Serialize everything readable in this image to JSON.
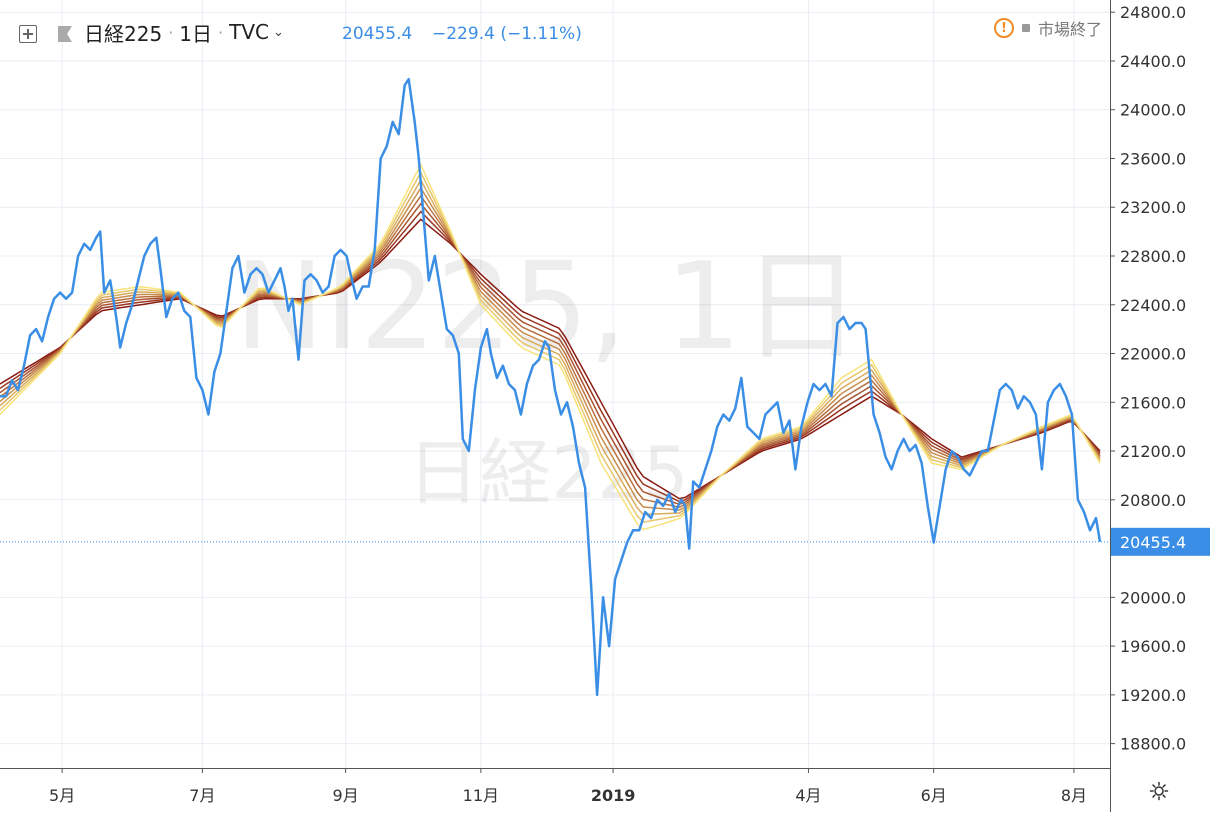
{
  "header": {
    "symbol": "日経225",
    "interval": "1日",
    "source": "TVC",
    "source_menu_icon": "chevron-down-icon",
    "add_icon": "plus-square-icon",
    "flag_icon": "flag-icon",
    "last_price": "20455.4",
    "change": "−229.4",
    "change_percent": "(−1.11%)",
    "market_status": "市場終了",
    "warning_icon": "exclamation-circle-icon",
    "settings_icon": "gear-icon"
  },
  "watermark": {
    "line1": "NI225, 1日",
    "line2": "日経225"
  },
  "colors": {
    "price_line": "#3a8ee6",
    "ribbon_fast": "#f7e37a",
    "ribbon_slow": "#8a1a12",
    "axis_text": "#333333",
    "grid": "#e9eef3",
    "price_tag": "#3a8ee6"
  },
  "chart_data": {
    "type": "line",
    "title": "日経225",
    "series": [
      {
        "name": "日経225",
        "points": [
          [
            0,
            21650
          ],
          [
            6,
            21650
          ],
          [
            12,
            21780
          ],
          [
            18,
            21700
          ],
          [
            24,
            21900
          ],
          [
            30,
            22150
          ],
          [
            36,
            22200
          ],
          [
            42,
            22100
          ],
          [
            48,
            22300
          ],
          [
            54,
            22450
          ],
          [
            60,
            22500
          ],
          [
            66,
            22450
          ],
          [
            72,
            22500
          ],
          [
            78,
            22800
          ],
          [
            84,
            22900
          ],
          [
            90,
            22850
          ],
          [
            96,
            22950
          ],
          [
            100,
            23000
          ],
          [
            104,
            22500
          ],
          [
            110,
            22600
          ],
          [
            116,
            22300
          ],
          [
            120,
            22050
          ],
          [
            126,
            22250
          ],
          [
            132,
            22400
          ],
          [
            138,
            22600
          ],
          [
            144,
            22800
          ],
          [
            150,
            22900
          ],
          [
            156,
            22950
          ],
          [
            160,
            22700
          ],
          [
            166,
            22300
          ],
          [
            172,
            22450
          ],
          [
            178,
            22500
          ],
          [
            184,
            22350
          ],
          [
            190,
            22300
          ],
          [
            196,
            21800
          ],
          [
            202,
            21700
          ],
          [
            208,
            21500
          ],
          [
            214,
            21850
          ],
          [
            220,
            22000
          ],
          [
            226,
            22350
          ],
          [
            232,
            22700
          ],
          [
            238,
            22800
          ],
          [
            244,
            22500
          ],
          [
            250,
            22650
          ],
          [
            256,
            22700
          ],
          [
            262,
            22650
          ],
          [
            268,
            22500
          ],
          [
            274,
            22600
          ],
          [
            280,
            22700
          ],
          [
            284,
            22550
          ],
          [
            288,
            22350
          ],
          [
            292,
            22450
          ],
          [
            298,
            21950
          ],
          [
            304,
            22600
          ],
          [
            310,
            22650
          ],
          [
            316,
            22600
          ],
          [
            322,
            22500
          ],
          [
            328,
            22550
          ],
          [
            334,
            22800
          ],
          [
            340,
            22850
          ],
          [
            346,
            22800
          ],
          [
            350,
            22650
          ],
          [
            356,
            22450
          ],
          [
            362,
            22550
          ],
          [
            368,
            22550
          ],
          [
            374,
            22850
          ],
          [
            380,
            23600
          ],
          [
            386,
            23700
          ],
          [
            392,
            23900
          ],
          [
            398,
            23800
          ],
          [
            404,
            24200
          ],
          [
            408,
            24250
          ],
          [
            414,
            23900
          ],
          [
            418,
            23600
          ],
          [
            422,
            23200
          ],
          [
            428,
            22600
          ],
          [
            434,
            22800
          ],
          [
            440,
            22500
          ],
          [
            446,
            22200
          ],
          [
            452,
            22150
          ],
          [
            458,
            22000
          ],
          [
            462,
            21300
          ],
          [
            468,
            21200
          ],
          [
            474,
            21700
          ],
          [
            480,
            22050
          ],
          [
            486,
            22200
          ],
          [
            490,
            22000
          ],
          [
            496,
            21800
          ],
          [
            502,
            21900
          ],
          [
            508,
            21750
          ],
          [
            514,
            21700
          ],
          [
            520,
            21500
          ],
          [
            526,
            21750
          ],
          [
            532,
            21900
          ],
          [
            538,
            21950
          ],
          [
            544,
            22100
          ],
          [
            548,
            22050
          ],
          [
            554,
            21700
          ],
          [
            560,
            21500
          ],
          [
            566,
            21600
          ],
          [
            572,
            21400
          ],
          [
            578,
            21100
          ],
          [
            584,
            20900
          ],
          [
            590,
            20100
          ],
          [
            596,
            19200
          ],
          [
            602,
            20000
          ],
          [
            608,
            19600
          ],
          [
            614,
            20150
          ],
          [
            620,
            20300
          ],
          [
            626,
            20450
          ],
          [
            632,
            20550
          ],
          [
            638,
            20550
          ],
          [
            644,
            20700
          ],
          [
            650,
            20650
          ],
          [
            656,
            20800
          ],
          [
            662,
            20750
          ],
          [
            668,
            20850
          ],
          [
            674,
            20700
          ],
          [
            680,
            20800
          ],
          [
            684,
            20750
          ],
          [
            688,
            20400
          ],
          [
            692,
            20950
          ],
          [
            698,
            20900
          ],
          [
            704,
            21050
          ],
          [
            710,
            21200
          ],
          [
            716,
            21400
          ],
          [
            722,
            21500
          ],
          [
            728,
            21450
          ],
          [
            734,
            21550
          ],
          [
            740,
            21800
          ],
          [
            746,
            21400
          ],
          [
            752,
            21350
          ],
          [
            758,
            21300
          ],
          [
            764,
            21500
          ],
          [
            770,
            21550
          ],
          [
            776,
            21600
          ],
          [
            782,
            21350
          ],
          [
            788,
            21450
          ],
          [
            794,
            21050
          ],
          [
            800,
            21400
          ],
          [
            806,
            21600
          ],
          [
            812,
            21750
          ],
          [
            818,
            21700
          ],
          [
            824,
            21750
          ],
          [
            830,
            21650
          ],
          [
            836,
            22250
          ],
          [
            842,
            22300
          ],
          [
            848,
            22200
          ],
          [
            854,
            22250
          ],
          [
            860,
            22250
          ],
          [
            864,
            22200
          ],
          [
            868,
            21850
          ],
          [
            872,
            21500
          ],
          [
            878,
            21350
          ],
          [
            884,
            21150
          ],
          [
            890,
            21050
          ],
          [
            896,
            21200
          ],
          [
            902,
            21300
          ],
          [
            908,
            21200
          ],
          [
            914,
            21250
          ],
          [
            920,
            21100
          ],
          [
            926,
            20750
          ],
          [
            932,
            20450
          ],
          [
            938,
            20750
          ],
          [
            944,
            21050
          ],
          [
            950,
            21200
          ],
          [
            956,
            21150
          ],
          [
            962,
            21050
          ],
          [
            968,
            21000
          ],
          [
            974,
            21100
          ],
          [
            980,
            21200
          ],
          [
            986,
            21200
          ],
          [
            992,
            21450
          ],
          [
            998,
            21700
          ],
          [
            1004,
            21750
          ],
          [
            1010,
            21700
          ],
          [
            1016,
            21550
          ],
          [
            1022,
            21650
          ],
          [
            1028,
            21600
          ],
          [
            1034,
            21500
          ],
          [
            1040,
            21050
          ],
          [
            1046,
            21600
          ],
          [
            1052,
            21700
          ],
          [
            1058,
            21750
          ],
          [
            1064,
            21650
          ],
          [
            1070,
            21500
          ],
          [
            1076,
            20800
          ],
          [
            1082,
            20700
          ],
          [
            1088,
            20550
          ],
          [
            1094,
            20650
          ],
          [
            1098,
            20455.4
          ]
        ]
      }
    ],
    "ribbon": {
      "type": "ema-ribbon",
      "count": 8,
      "base": [
        [
          0,
          21750
        ],
        [
          60,
          22050
        ],
        [
          100,
          22350
        ],
        [
          140,
          22400
        ],
        [
          180,
          22450
        ],
        [
          220,
          22300
        ],
        [
          260,
          22450
        ],
        [
          300,
          22450
        ],
        [
          340,
          22500
        ],
        [
          380,
          22750
        ],
        [
          420,
          23100
        ],
        [
          450,
          22900
        ],
        [
          480,
          22650
        ],
        [
          520,
          22350
        ],
        [
          560,
          22200
        ],
        [
          600,
          21600
        ],
        [
          640,
          21000
        ],
        [
          680,
          20800
        ],
        [
          720,
          21000
        ],
        [
          760,
          21200
        ],
        [
          800,
          21300
        ],
        [
          840,
          21500
        ],
        [
          870,
          21650
        ],
        [
          900,
          21500
        ],
        [
          930,
          21300
        ],
        [
          960,
          21150
        ],
        [
          1000,
          21250
        ],
        [
          1040,
          21350
        ],
        [
          1070,
          21450
        ],
        [
          1098,
          21200
        ]
      ],
      "fast": [
        [
          0,
          21500
        ],
        [
          60,
          22000
        ],
        [
          100,
          22500
        ],
        [
          140,
          22550
        ],
        [
          180,
          22500
        ],
        [
          220,
          22200
        ],
        [
          260,
          22550
        ],
        [
          300,
          22400
        ],
        [
          340,
          22550
        ],
        [
          380,
          22900
        ],
        [
          420,
          23550
        ],
        [
          450,
          23000
        ],
        [
          480,
          22400
        ],
        [
          520,
          22050
        ],
        [
          560,
          21900
        ],
        [
          600,
          21100
        ],
        [
          640,
          20550
        ],
        [
          680,
          20650
        ],
        [
          720,
          21000
        ],
        [
          760,
          21300
        ],
        [
          800,
          21400
        ],
        [
          840,
          21800
        ],
        [
          870,
          21950
        ],
        [
          900,
          21500
        ],
        [
          930,
          21100
        ],
        [
          960,
          21050
        ],
        [
          1000,
          21250
        ],
        [
          1040,
          21400
        ],
        [
          1070,
          21500
        ],
        [
          1098,
          21100
        ]
      ]
    },
    "yaxis": {
      "ticks": [
        "24800.0",
        "24400.0",
        "24000.0",
        "23600.0",
        "23200.0",
        "22800.0",
        "22400.0",
        "22000.0",
        "21600.0",
        "21200.0",
        "20800.0",
        "20000.0",
        "19600.0",
        "19200.0",
        "18800.0"
      ],
      "ylim": [
        18600,
        24900
      ]
    },
    "xaxis": {
      "ticks": [
        {
          "label": "5月",
          "x": 62
        },
        {
          "label": "7月",
          "x": 202
        },
        {
          "label": "9月",
          "x": 345
        },
        {
          "label": "11月",
          "x": 480
        },
        {
          "label": "2019",
          "x": 612
        },
        {
          "label": "4月",
          "x": 807
        },
        {
          "label": "6月",
          "x": 932
        },
        {
          "label": "8月",
          "x": 1072
        }
      ],
      "xlim": [
        0,
        1108
      ]
    },
    "last_value": "20455.4",
    "grid": true
  }
}
